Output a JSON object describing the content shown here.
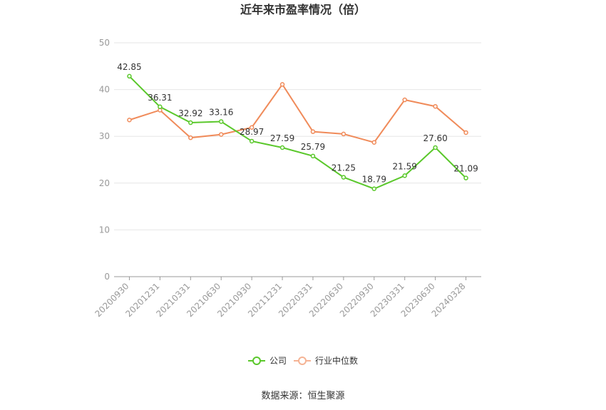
{
  "chart_data": {
    "type": "line",
    "title": "近年来市盈率情况（倍）",
    "xlabel": "",
    "ylabel": "",
    "ylim": [
      0,
      50
    ],
    "yticks": [
      0,
      10,
      20,
      30,
      40,
      50
    ],
    "grid": true,
    "legend_position": "bottom",
    "categories": [
      "20200930",
      "20201231",
      "20210331",
      "20210630",
      "20210930",
      "20211231",
      "20220331",
      "20220630",
      "20220930",
      "20230331",
      "20230630",
      "20240328"
    ],
    "series": [
      {
        "name": "公司",
        "color": "#5ac82b",
        "values": [
          42.85,
          36.31,
          32.92,
          33.16,
          28.97,
          27.59,
          25.79,
          21.25,
          18.79,
          21.59,
          27.6,
          21.09
        ],
        "labels": [
          "42.85",
          "36.31",
          "32.92",
          "33.16",
          "28.97",
          "27.59",
          "25.79",
          "21.25",
          "18.79",
          "21.59",
          "27.60",
          "21.09"
        ]
      },
      {
        "name": "行业中位数",
        "color": "#f08b5a",
        "values": [
          33.5,
          35.6,
          29.7,
          30.4,
          31.9,
          41.1,
          31.0,
          30.5,
          28.7,
          37.8,
          36.4,
          30.8
        ]
      }
    ],
    "source": "数据来源：恒生聚源"
  }
}
